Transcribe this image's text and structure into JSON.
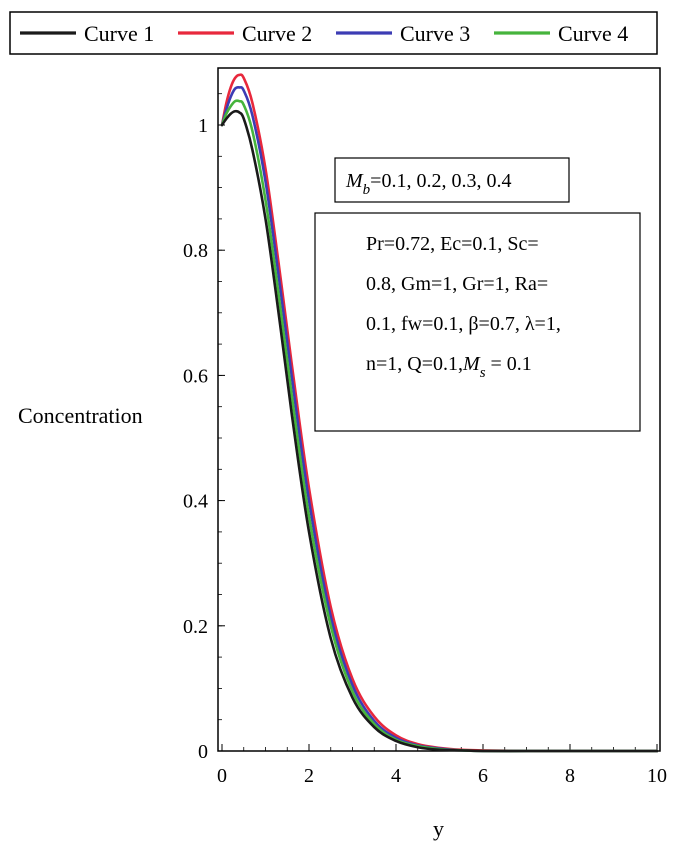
{
  "chart_data": {
    "type": "line",
    "xlabel": "y",
    "ylabel": "Concentration",
    "xlim": [
      0,
      10
    ],
    "ylim": [
      0,
      1.1
    ],
    "x_ticks": [
      "0",
      "2",
      "4",
      "6",
      "8",
      "10"
    ],
    "y_ticks": [
      "0",
      "0.2",
      "0.4",
      "0.6",
      "0.8",
      "1"
    ],
    "grid": false,
    "legend_position": "top",
    "x": [
      0,
      0.1,
      0.2,
      0.3,
      0.4,
      0.5,
      0.7,
      1.0,
      1.3,
      1.6,
      2.0,
      2.5,
      3.0,
      3.5,
      4.0,
      4.5,
      5.0,
      5.5,
      6.0,
      7.0,
      8.0,
      9.0,
      10.0
    ],
    "series": [
      {
        "name": "Curve 1",
        "color": "#1a1a1a",
        "values": [
          1.0,
          1.01,
          1.018,
          1.022,
          1.02,
          1.01,
          0.96,
          0.85,
          0.7,
          0.54,
          0.35,
          0.18,
          0.085,
          0.038,
          0.016,
          0.006,
          0.002,
          0.001,
          0.0,
          0.0,
          0.0,
          0.0,
          0.0
        ]
      },
      {
        "name": "Curve 2",
        "color": "#e8283c",
        "values": [
          1.0,
          1.035,
          1.06,
          1.075,
          1.08,
          1.075,
          1.035,
          0.93,
          0.78,
          0.62,
          0.42,
          0.23,
          0.115,
          0.055,
          0.025,
          0.011,
          0.005,
          0.002,
          0.001,
          0.0,
          0.0,
          0.0,
          0.0
        ]
      },
      {
        "name": "Curve 3",
        "color": "#3c3cb4",
        "values": [
          1.0,
          1.025,
          1.045,
          1.058,
          1.06,
          1.055,
          1.015,
          0.91,
          0.76,
          0.6,
          0.4,
          0.215,
          0.105,
          0.048,
          0.021,
          0.009,
          0.004,
          0.001,
          0.0,
          0.0,
          0.0,
          0.0,
          0.0
        ]
      },
      {
        "name": "Curve 4",
        "color": "#46b43c",
        "values": [
          1.0,
          1.018,
          1.03,
          1.038,
          1.038,
          1.032,
          0.99,
          0.88,
          0.73,
          0.57,
          0.375,
          0.2,
          0.095,
          0.043,
          0.018,
          0.008,
          0.003,
          0.001,
          0.0,
          0.0,
          0.0,
          0.0,
          0.0
        ]
      }
    ],
    "annotations": {
      "param_var": {
        "sym": "M",
        "sub": "b",
        "text": "=0.1, 0.2, 0.3, 0.4"
      },
      "params": [
        "Pr=0.72, Ec=0.1, Sc=",
        "0.8, Gm=1, Gr=1, Ra=",
        "0.1, fw=0.1, β=0.7, λ=1,"
      ],
      "params_last": {
        "text": "n=1, Q=0.1,",
        "sym": "M",
        "sub": "s",
        "tail": " = 0.1"
      }
    }
  }
}
